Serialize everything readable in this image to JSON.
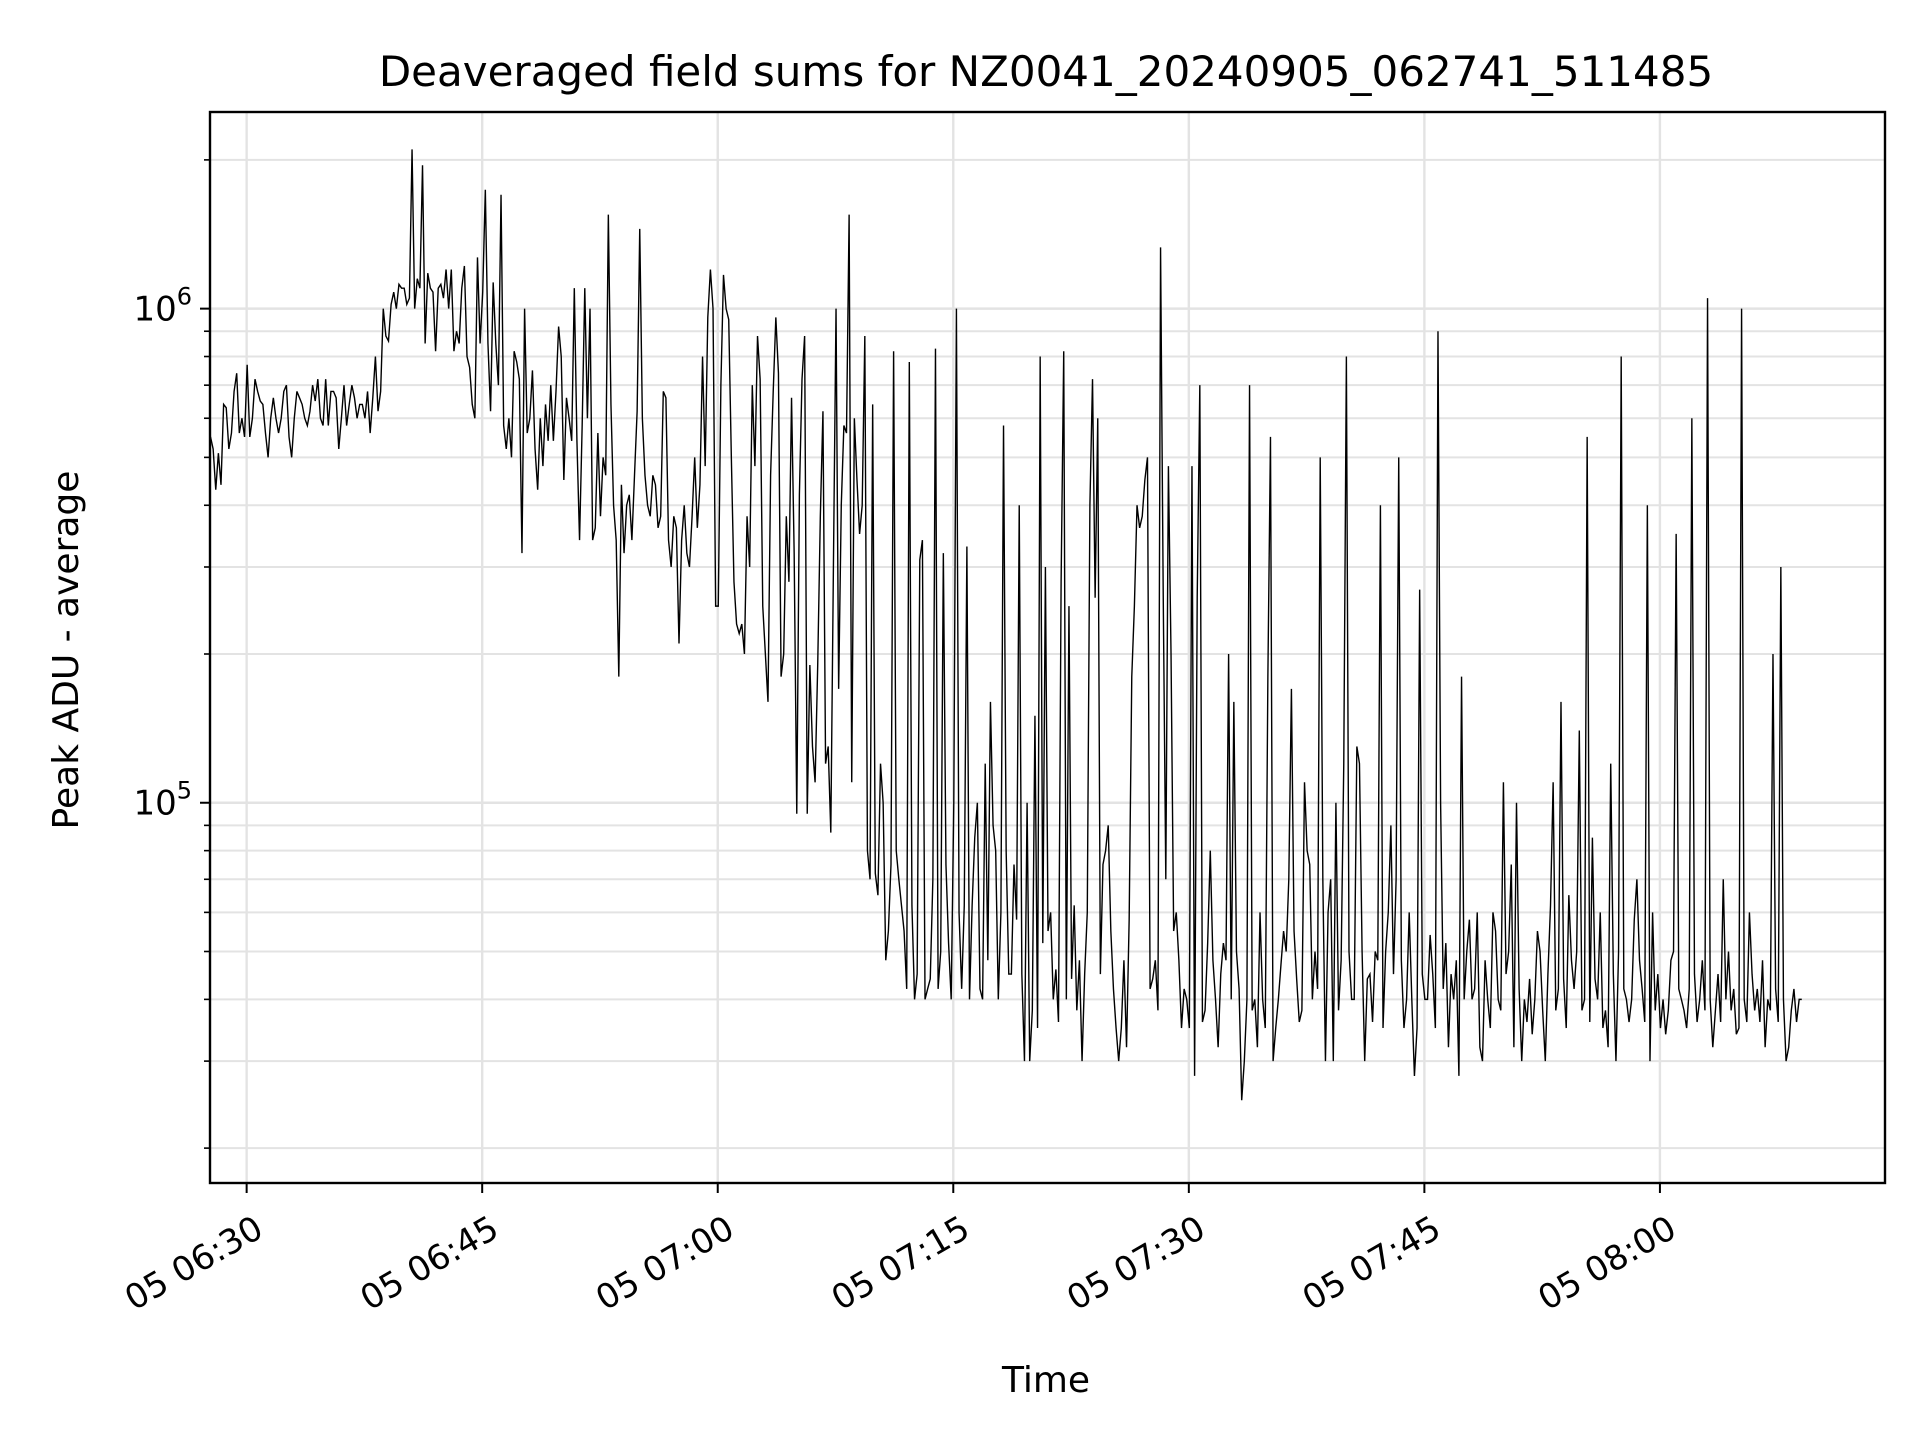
{
  "chart_data": {
    "type": "line",
    "title": "Deaveraged field sums for NZ0041_20240905_062741_511485",
    "xlabel": "Time",
    "ylabel": "Peak ADU - average",
    "xscale": "time",
    "yscale": "log",
    "grid": true,
    "legend": "none",
    "line_color": "#000000",
    "grid_color": "#e3e3e3",
    "xlim": [
      "2024-09-05 06:27:40",
      "2024-09-05 08:14:20"
    ],
    "ylim": [
      17000,
      2500000
    ],
    "x_ticks": [
      {
        "t": "2024-09-05 06:30",
        "label": "05 06:30"
      },
      {
        "t": "2024-09-05 06:45",
        "label": "05 06:45"
      },
      {
        "t": "2024-09-05 07:00",
        "label": "05 07:00"
      },
      {
        "t": "2024-09-05 07:15",
        "label": "05 07:15"
      },
      {
        "t": "2024-09-05 07:30",
        "label": "05 07:30"
      },
      {
        "t": "2024-09-05 07:45",
        "label": "05 07:45"
      },
      {
        "t": "2024-09-05 08:00",
        "label": "05 08:00"
      }
    ],
    "y_ticks": [
      {
        "value": 100000,
        "base": "10",
        "exp": "5"
      },
      {
        "value": 1000000,
        "base": "10",
        "exp": "6"
      }
    ],
    "series": [
      {
        "x_start": "2024-09-05 06:27:42",
        "x_step_seconds": 10,
        "values": [
          550000,
          520000,
          430000,
          510000,
          440000,
          640000,
          630000,
          520000,
          560000,
          680000,
          740000,
          560000,
          600000,
          550000,
          770000,
          550000,
          600000,
          720000,
          680000,
          650000,
          640000,
          560000,
          500000,
          600000,
          660000,
          600000,
          560000,
          600000,
          680000,
          700000,
          550000,
          500000,
          600000,
          680000,
          660000,
          640000,
          600000,
          580000,
          620000,
          700000,
          650000,
          720000,
          600000,
          580000,
          720000,
          580000,
          680000,
          680000,
          660000,
          520000,
          600000,
          700000,
          580000,
          640000,
          700000,
          660000,
          600000,
          640000,
          640000,
          600000,
          680000,
          560000,
          660000,
          800000,
          620000,
          680000,
          1000000,
          880000,
          860000,
          1020000,
          1080000,
          1000000,
          1120000,
          1100000,
          1100000,
          1020000,
          1050000,
          2100000,
          1000000,
          1150000,
          1100000,
          1950000,
          850000,
          1180000,
          1100000,
          1080000,
          820000,
          1100000,
          1120000,
          1050000,
          1200000,
          1000000,
          1200000,
          820000,
          900000,
          850000,
          1100000,
          1220000,
          800000,
          760000,
          640000,
          600000,
          1270000,
          850000,
          1080000,
          1740000,
          850000,
          620000,
          1130000,
          850000,
          700000,
          1700000,
          580000,
          520000,
          600000,
          500000,
          820000,
          780000,
          720000,
          320000,
          1000000,
          560000,
          600000,
          750000,
          520000,
          430000,
          600000,
          480000,
          640000,
          540000,
          700000,
          540000,
          680000,
          920000,
          800000,
          450000,
          660000,
          600000,
          540000,
          1100000,
          540000,
          340000,
          580000,
          1100000,
          600000,
          1000000,
          340000,
          360000,
          560000,
          380000,
          500000,
          460000,
          1550000,
          640000,
          400000,
          340000,
          180000,
          440000,
          320000,
          400000,
          420000,
          340000,
          460000,
          620000,
          1450000,
          600000,
          460000,
          400000,
          380000,
          460000,
          440000,
          360000,
          380000,
          680000,
          660000,
          340000,
          300000,
          380000,
          360000,
          210000,
          340000,
          400000,
          320000,
          300000,
          380000,
          500000,
          360000,
          440000,
          800000,
          480000,
          960000,
          1200000,
          1000000,
          250000,
          250000,
          700000,
          1170000,
          1000000,
          950000,
          500000,
          280000,
          230000,
          220000,
          230000,
          200000,
          380000,
          300000,
          700000,
          480000,
          880000,
          720000,
          250000,
          200000,
          160000,
          460000,
          680000,
          960000,
          740000,
          180000,
          200000,
          380000,
          280000,
          660000,
          320000,
          95000,
          420000,
          720000,
          880000,
          95000,
          190000,
          130000,
          110000,
          190000,
          380000,
          620000,
          120000,
          130000,
          87000,
          300000,
          1000000,
          170000,
          400000,
          580000,
          560000,
          1550000,
          110000,
          600000,
          450000,
          350000,
          400000,
          880000,
          80000,
          70000,
          640000,
          72000,
          65000,
          120000,
          100000,
          48000,
          55000,
          75000,
          820000,
          80000,
          70000,
          62000,
          55000,
          42000,
          780000,
          62000,
          40000,
          45000,
          310000,
          340000,
          40000,
          42000,
          44000,
          70000,
          830000,
          42000,
          50000,
          320000,
          75000,
          52000,
          40000,
          100000,
          1000000,
          60000,
          42000,
          62000,
          330000,
          40000,
          62000,
          85000,
          100000,
          42000,
          40000,
          120000,
          48000,
          160000,
          90000,
          80000,
          40000,
          60000,
          580000,
          80000,
          45000,
          45000,
          75000,
          58000,
          400000,
          45000,
          30000,
          100000,
          30000,
          38000,
          150000,
          35000,
          800000,
          52000,
          300000,
          55000,
          60000,
          40000,
          46000,
          36000,
          280000,
          820000,
          40000,
          250000,
          44000,
          62000,
          38000,
          48000,
          30000,
          45000,
          60000,
          400000,
          720000,
          260000,
          600000,
          45000,
          75000,
          80000,
          90000,
          55000,
          42000,
          35000,
          30000,
          35000,
          48000,
          32000,
          58000,
          180000,
          250000,
          400000,
          360000,
          380000,
          450000,
          500000,
          42000,
          44000,
          48000,
          38000,
          1330000,
          270000,
          70000,
          480000,
          200000,
          55000,
          60000,
          48000,
          35000,
          42000,
          40000,
          35000,
          480000,
          28000,
          260000,
          700000,
          36000,
          38000,
          52000,
          80000,
          48000,
          40000,
          32000,
          45000,
          52000,
          48000,
          200000,
          40000,
          160000,
          50000,
          42000,
          25000,
          30000,
          40000,
          700000,
          38000,
          40000,
          32000,
          60000,
          40000,
          35000,
          180000,
          550000,
          30000,
          35000,
          40000,
          47000,
          55000,
          50000,
          70000,
          170000,
          55000,
          44000,
          36000,
          38000,
          110000,
          80000,
          75000,
          40000,
          50000,
          42000,
          500000,
          70000,
          30000,
          60000,
          70000,
          30000,
          100000,
          38000,
          48000,
          120000,
          800000,
          50000,
          40000,
          40000,
          130000,
          120000,
          50000,
          30000,
          44000,
          45000,
          36000,
          50000,
          48000,
          400000,
          35000,
          50000,
          60000,
          90000,
          45000,
          70000,
          500000,
          48000,
          35000,
          40000,
          60000,
          40000,
          28000,
          35000,
          270000,
          45000,
          40000,
          40000,
          54000,
          45000,
          35000,
          900000,
          100000,
          42000,
          52000,
          32000,
          45000,
          40000,
          48000,
          28000,
          180000,
          40000,
          50000,
          58000,
          40000,
          42000,
          60000,
          32000,
          30000,
          48000,
          40000,
          35000,
          60000,
          55000,
          40000,
          38000,
          110000,
          45000,
          50000,
          75000,
          32000,
          100000,
          42000,
          30000,
          40000,
          36000,
          44000,
          34000,
          40000,
          55000,
          50000,
          38000,
          30000,
          45000,
          62000,
          110000,
          38000,
          42000,
          160000,
          44000,
          35000,
          65000,
          48000,
          42000,
          50000,
          140000,
          38000,
          40000,
          550000,
          36000,
          85000,
          44000,
          40000,
          60000,
          35000,
          38000,
          32000,
          120000,
          45000,
          30000,
          50000,
          800000,
          42000,
          40000,
          36000,
          40000,
          58000,
          70000,
          48000,
          42000,
          36000,
          400000,
          30000,
          60000,
          38000,
          45000,
          35000,
          40000,
          34000,
          38000,
          48000,
          50000,
          350000,
          42000,
          40000,
          38000,
          35000,
          42000,
          600000,
          45000,
          36000,
          40000,
          48000,
          38000,
          1050000,
          40000,
          32000,
          38000,
          45000,
          36000,
          70000,
          40000,
          50000,
          38000,
          42000,
          34000,
          35000,
          1000000,
          40000,
          36000,
          60000,
          45000,
          38000,
          42000,
          36000,
          48000,
          32000,
          40000,
          38000,
          200000,
          42000,
          36000,
          300000,
          40000,
          30000,
          32000,
          38000,
          42000,
          36000,
          40000,
          40000
        ]
      }
    ]
  }
}
